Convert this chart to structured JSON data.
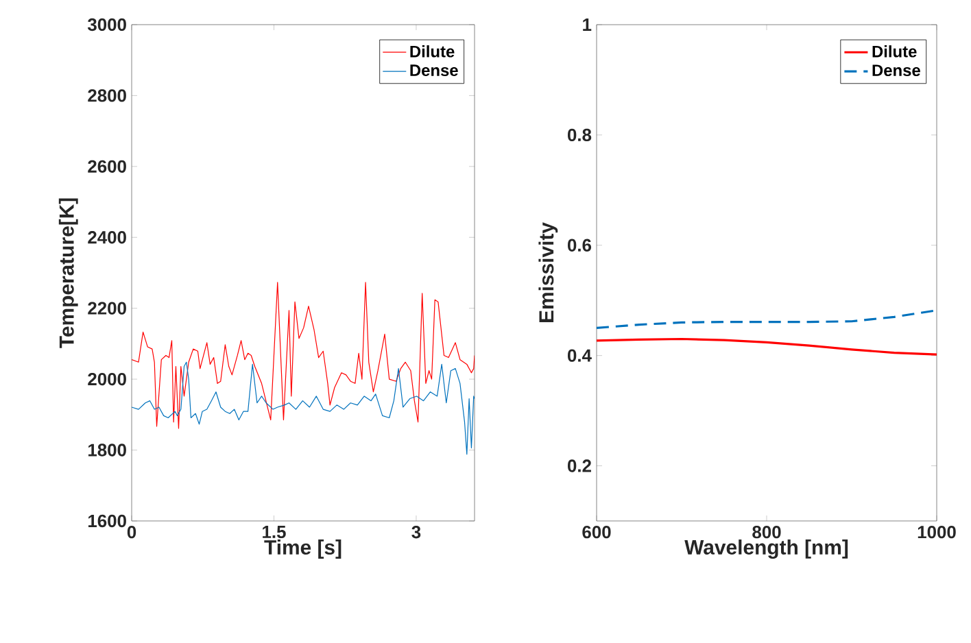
{
  "chart_data": [
    {
      "type": "line",
      "xlabel": "Time [s]",
      "ylabel": "Temperature[K]",
      "xlim": [
        0,
        3.615
      ],
      "ylim": [
        1600,
        3000
      ],
      "xticks": [
        0,
        1.5,
        3
      ],
      "yticks": [
        1600,
        1800,
        2000,
        2200,
        2400,
        2600,
        2800,
        3000
      ],
      "legend": "top right",
      "grid": false,
      "marker": "none",
      "series": [
        {
          "name": "Dilute",
          "color": "#ff0000",
          "line_style": "solid",
          "x": [
            0,
            0.072,
            0.12,
            0.168,
            0.216,
            0.24,
            0.264,
            0.313,
            0.361,
            0.394,
            0.423,
            0.442,
            0.466,
            0.495,
            0.519,
            0.553,
            0.601,
            0.649,
            0.697,
            0.721,
            0.793,
            0.827,
            0.865,
            0.904,
            0.938,
            0.986,
            1.024,
            1.058,
            1.115,
            1.154,
            1.192,
            1.226,
            1.26,
            1.298,
            1.37,
            1.466,
            1.538,
            1.601,
            1.659,
            1.683,
            1.721,
            1.764,
            1.813,
            1.865,
            1.923,
            1.971,
            2.019,
            2.067,
            2.091,
            2.139,
            2.212,
            2.26,
            2.308,
            2.356,
            2.394,
            2.428,
            2.466,
            2.5,
            2.548,
            2.596,
            2.668,
            2.716,
            2.788,
            2.837,
            2.885,
            2.942,
            2.981,
            3.019,
            3.063,
            3.101,
            3.135,
            3.163,
            3.197,
            3.231,
            3.293,
            3.341,
            3.413,
            3.462,
            3.534,
            3.582,
            3.606,
            3.615
          ],
          "values": [
            2055,
            2048,
            2133,
            2091,
            2085,
            2048,
            1867,
            2055,
            2067,
            2061,
            2109,
            1879,
            2036,
            1861,
            2036,
            1952,
            2048,
            2085,
            2079,
            2030,
            2103,
            2042,
            2061,
            1988,
            1994,
            2097,
            2036,
            2012,
            2067,
            2109,
            2055,
            2073,
            2067,
            2036,
            1988,
            1885,
            2273,
            1885,
            2194,
            1952,
            2218,
            2115,
            2145,
            2206,
            2139,
            2061,
            2079,
            1988,
            1927,
            1976,
            2018,
            2012,
            1994,
            1988,
            2073,
            2000,
            2273,
            2048,
            1964,
            2024,
            2127,
            2000,
            1994,
            2030,
            2048,
            2024,
            1939,
            1879,
            2242,
            1988,
            2024,
            2000,
            2224,
            2218,
            2067,
            2061,
            2103,
            2055,
            2042,
            2018,
            2030,
            2067
          ]
        },
        {
          "name": "Dense",
          "color": "#0072bd",
          "line_style": "solid",
          "x": [
            0,
            0.072,
            0.144,
            0.192,
            0.24,
            0.288,
            0.337,
            0.385,
            0.457,
            0.481,
            0.519,
            0.553,
            0.577,
            0.601,
            0.625,
            0.673,
            0.712,
            0.745,
            0.793,
            0.841,
            0.889,
            0.938,
            0.986,
            1.034,
            1.082,
            1.13,
            1.178,
            1.226,
            1.274,
            1.322,
            1.37,
            1.418,
            1.49,
            1.538,
            1.611,
            1.659,
            1.731,
            1.803,
            1.875,
            1.947,
            2.019,
            2.091,
            2.163,
            2.236,
            2.308,
            2.38,
            2.452,
            2.524,
            2.572,
            2.644,
            2.716,
            2.764,
            2.813,
            2.861,
            2.933,
            3.005,
            3.077,
            3.149,
            3.221,
            3.269,
            3.317,
            3.365,
            3.413,
            3.462,
            3.51,
            3.534,
            3.558,
            3.582,
            3.606,
            3.615
          ],
          "values": [
            1921,
            1915,
            1933,
            1939,
            1915,
            1921,
            1897,
            1891,
            1909,
            1897,
            1915,
            2036,
            2048,
            2000,
            1891,
            1903,
            1873,
            1909,
            1915,
            1939,
            1964,
            1921,
            1909,
            1903,
            1915,
            1885,
            1909,
            1909,
            2042,
            1933,
            1952,
            1933,
            1915,
            1921,
            1927,
            1933,
            1915,
            1939,
            1921,
            1952,
            1915,
            1909,
            1927,
            1915,
            1933,
            1927,
            1952,
            1939,
            1958,
            1897,
            1891,
            1939,
            2030,
            1921,
            1945,
            1952,
            1939,
            1964,
            1952,
            2042,
            1933,
            2024,
            2030,
            1988,
            1879,
            1788,
            1945,
            1806,
            1952,
            1945
          ]
        }
      ]
    },
    {
      "type": "line",
      "xlabel": "Wavelength [nm]",
      "ylabel": "Emissivity",
      "xlim": [
        600,
        1000
      ],
      "ylim": [
        0.1,
        1
      ],
      "xticks": [
        600,
        800,
        1000
      ],
      "yticks": [
        0.2,
        0.4,
        0.6,
        0.8,
        1
      ],
      "legend": "top right",
      "grid": false,
      "marker": "none",
      "series": [
        {
          "name": "Dilute",
          "color": "#ff0000",
          "line_style": "solid",
          "x": [
            600,
            650,
            700,
            750,
            800,
            850,
            900,
            950,
            1000
          ],
          "values": [
            0.427,
            0.429,
            0.43,
            0.428,
            0.424,
            0.418,
            0.411,
            0.405,
            0.402
          ]
        },
        {
          "name": "Dense",
          "color": "#0072bd",
          "line_style": "dashed",
          "x": [
            600,
            650,
            700,
            750,
            800,
            850,
            900,
            950,
            1000
          ],
          "values": [
            0.45,
            0.456,
            0.46,
            0.461,
            0.461,
            0.461,
            0.462,
            0.47,
            0.482
          ]
        }
      ]
    }
  ]
}
